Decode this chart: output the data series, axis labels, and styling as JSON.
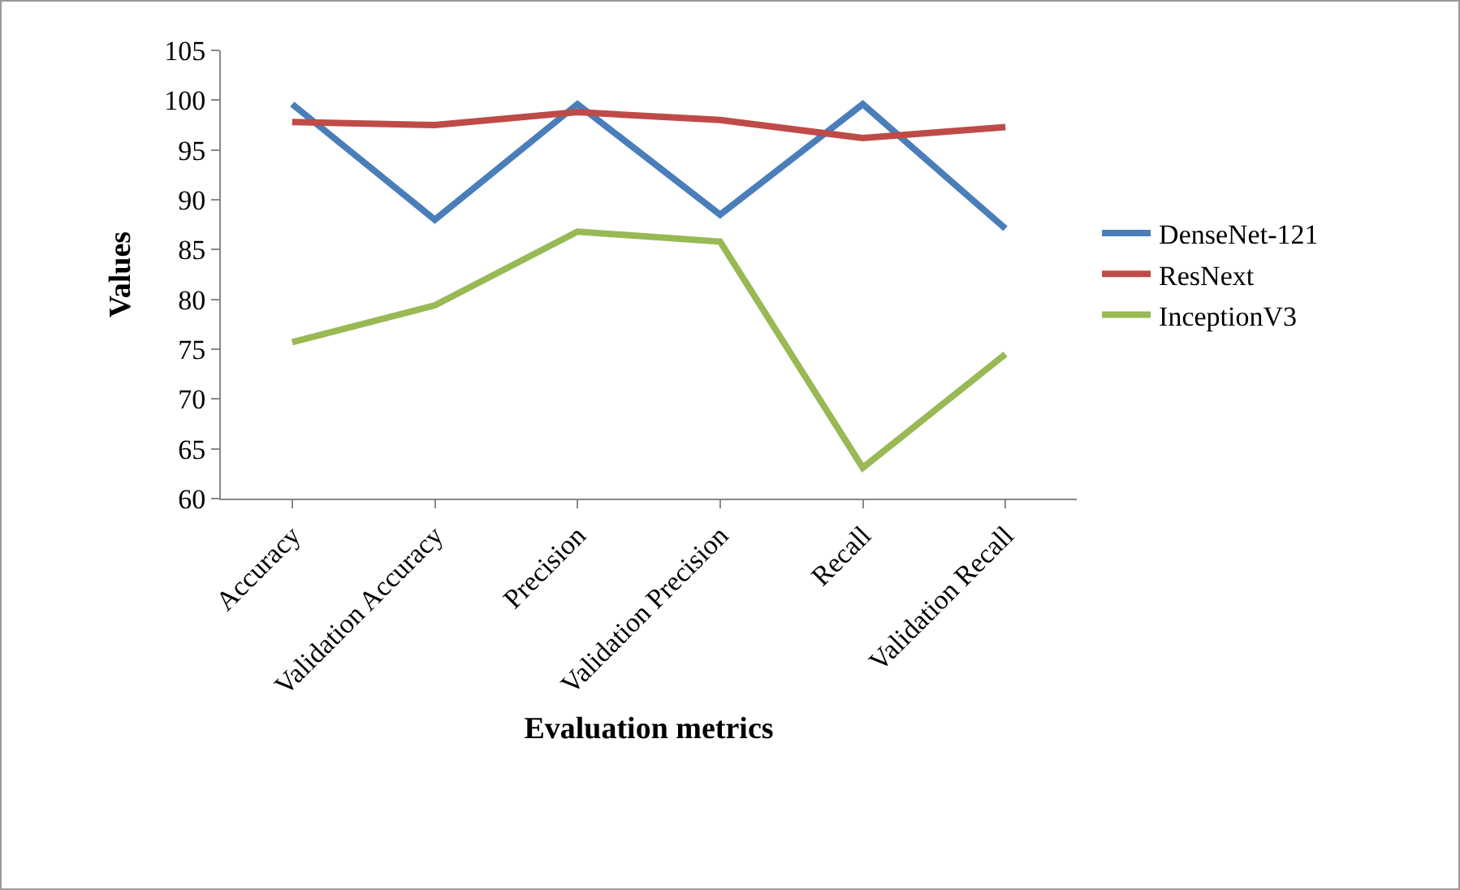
{
  "chart_data": {
    "type": "line",
    "xlabel": "Evaluation metrics",
    "ylabel": "Values",
    "categories": [
      "Accuracy",
      "Validation Accuracy",
      "Precision",
      "Validation Precision",
      "Recall",
      "Validation Recall"
    ],
    "series": [
      {
        "name": "DenseNet-121",
        "color": "#4a7ebb",
        "values": [
          99.6,
          88,
          99.6,
          88.5,
          99.6,
          87.1
        ]
      },
      {
        "name": "ResNext",
        "color": "#be4b48",
        "values": [
          97.8,
          97.5,
          98.8,
          98,
          96.2,
          97.3
        ]
      },
      {
        "name": "InceptionV3",
        "color": "#98b954",
        "values": [
          75.7,
          79.4,
          86.8,
          85.8,
          63.1,
          74.5
        ]
      }
    ],
    "ylim": [
      60,
      105
    ],
    "yticks": [
      60,
      65,
      70,
      75,
      80,
      85,
      90,
      95,
      100,
      105
    ],
    "grid": false,
    "legend": "right",
    "marker": "none",
    "line_style": "solid"
  }
}
